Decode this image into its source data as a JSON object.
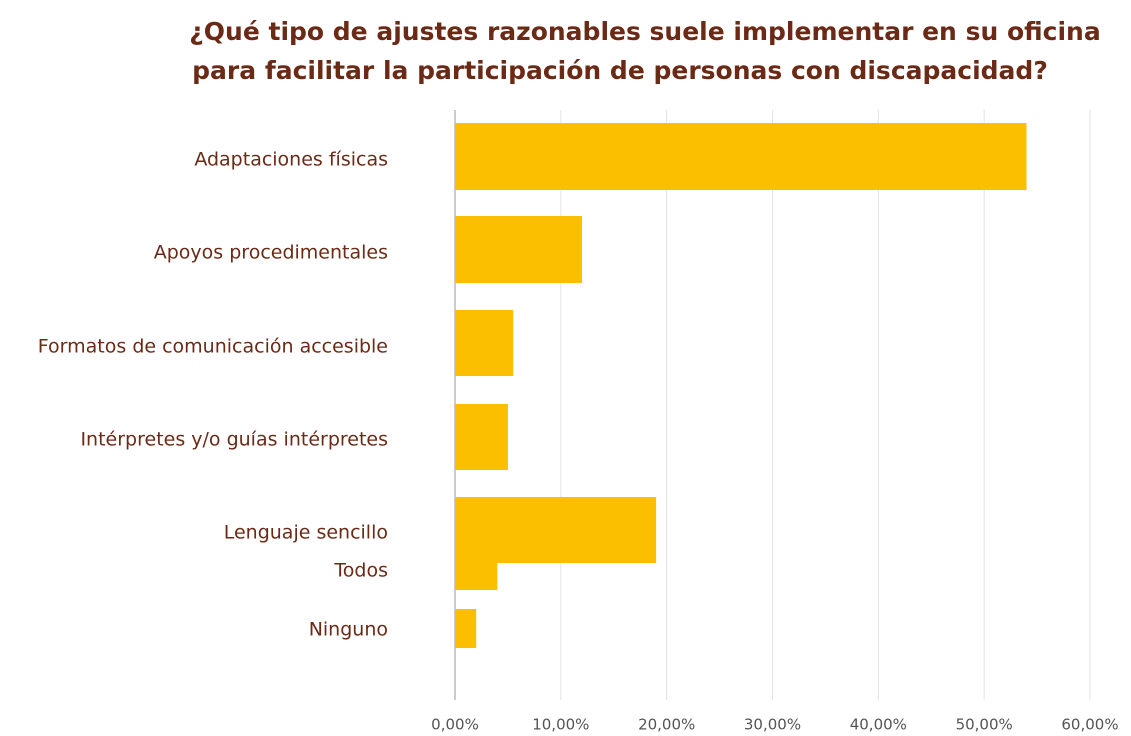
{
  "chart_data": {
    "type": "bar",
    "orientation": "horizontal",
    "title": [
      "¿Qué tipo de ajustes razonables suele implementar en su oficina",
      "para facilitar la participación de personas con discapacidad?"
    ],
    "categories": [
      "Adaptaciones físicas",
      "Apoyos procedimentales",
      "Formatos de comunicación accesible",
      "Intérpretes y/o guías intérpretes",
      "Lenguaje sencillo",
      "Todos",
      "Ninguno"
    ],
    "values": [
      54,
      12,
      5.5,
      5,
      19,
      4,
      2
    ],
    "color": "#fbbf00",
    "xlim": [
      0,
      60
    ],
    "xticks": [
      {
        "value": 0,
        "label": "0,00%"
      },
      {
        "value": 10,
        "label": "10,00%"
      },
      {
        "value": 20,
        "label": "20,00%"
      },
      {
        "value": 30,
        "label": "30,00%"
      },
      {
        "value": 40,
        "label": "40,00%"
      },
      {
        "value": 50,
        "label": "50,00%"
      },
      {
        "value": 60,
        "label": "60,00%"
      }
    ],
    "grid": true
  }
}
